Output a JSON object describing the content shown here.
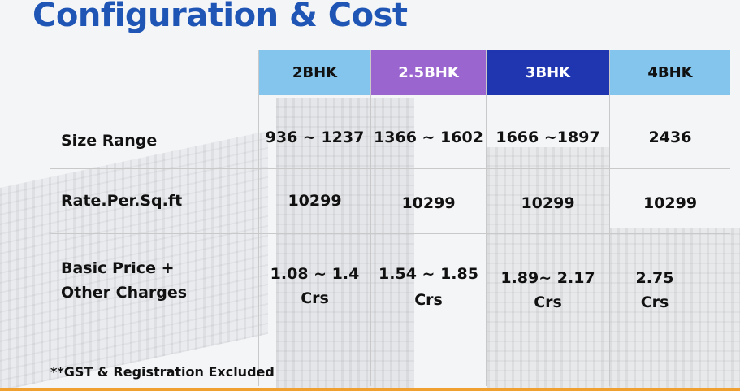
{
  "title": "Configuration & Cost",
  "table": {
    "columns": [
      "2BHK",
      "2.5BHK",
      "3BHK",
      "4BHK"
    ],
    "header_colors": [
      "#83c5ec",
      "#9b65cf",
      "#1f36b0",
      "#83c5ec"
    ],
    "rows": [
      {
        "label": "Size Range",
        "cells": [
          "936 ~ 1237",
          "1366 ~ 1602",
          "1666 ~1897",
          "2436"
        ]
      },
      {
        "label": "Rate.Per.Sq.ft",
        "cells": [
          "10299",
          "10299",
          "10299",
          "10299"
        ]
      },
      {
        "label_line1": "Basic Price +",
        "label_line2": "Other Charges",
        "cells": [
          {
            "line1": "1.08 ~ 1.4",
            "line2": "Crs"
          },
          {
            "line1": "1.54 ~ 1.85",
            "line2": "Crs"
          },
          {
            "line1": "1.89~ 2.17",
            "line2": "Crs"
          },
          {
            "line1": "2.75",
            "line2": "Crs"
          }
        ]
      }
    ]
  },
  "footnote": "**GST & Registration Excluded"
}
